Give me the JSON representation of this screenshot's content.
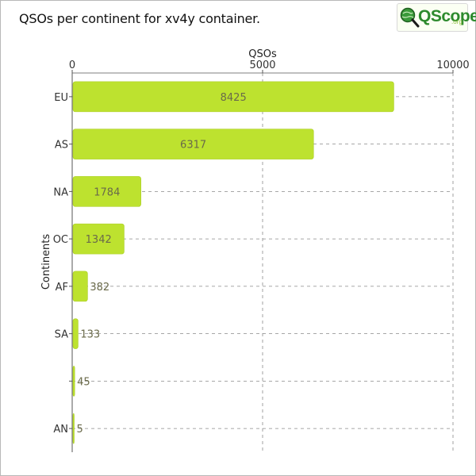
{
  "title": "QSOs per continent for xv4y container.",
  "logo": {
    "word": "QScope",
    "suffix": ".org"
  },
  "colors": {
    "bar": "#bde22f",
    "bar_edge": "#a8cc1e",
    "grid": "#8a8a8a",
    "axis": "#555555",
    "value_text": "#6a6a4a"
  },
  "chart_data": {
    "type": "bar",
    "orientation": "horizontal",
    "title": "QSOs per continent for xv4y container.",
    "xlabel": "QSOs",
    "ylabel": "Continents",
    "xlim": [
      0,
      10000
    ],
    "x_ticks": [
      0,
      5000,
      10000
    ],
    "x_axis_position": "top",
    "grid": true,
    "categories": [
      "EU",
      "AS",
      "NA",
      "OC",
      "AF",
      "SA",
      "",
      "AN"
    ],
    "values": [
      8425,
      6317,
      1784,
      1342,
      382,
      133,
      45,
      5
    ]
  }
}
